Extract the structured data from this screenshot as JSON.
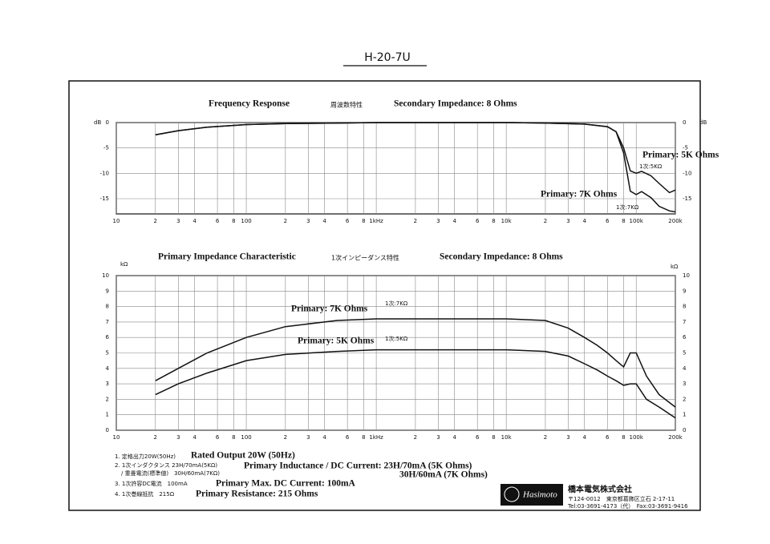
{
  "title": "H-20-7U",
  "chart_data": [
    {
      "type": "line",
      "title": "Frequency Response",
      "title_ja": "周波数特性",
      "subtitle": "Secondary Impedance: 8 Ohms",
      "y_label": "dB",
      "log_x": true,
      "grid": true,
      "x": [
        20,
        30,
        50,
        100,
        200,
        500,
        1000,
        2000,
        5000,
        10000,
        20000,
        40000,
        60000,
        70000,
        80000,
        90000,
        100000,
        110000,
        130000,
        150000,
        180000,
        200000
      ],
      "series": [
        {
          "name": "Primary: 5K Ohms",
          "label_ja": "1次:5KΩ",
          "color": "#111111",
          "values": [
            -2.4,
            -1.6,
            -0.9,
            -0.4,
            -0.2,
            -0.1,
            0,
            0,
            0,
            0,
            -0.1,
            -0.3,
            -0.8,
            -1.8,
            -5,
            -9.5,
            -10,
            -9.6,
            -10.5,
            -12,
            -13.8,
            -13.3
          ]
        },
        {
          "name": "Primary: 7K Ohms",
          "label_ja": "1次:7KΩ",
          "color": "#111111",
          "values": [
            -2.4,
            -1.6,
            -0.9,
            -0.4,
            -0.2,
            -0.1,
            0,
            0,
            0,
            0,
            -0.1,
            -0.3,
            -0.8,
            -1.8,
            -6,
            -13.5,
            -14.2,
            -13.6,
            -14.8,
            -16.5,
            -17.4,
            -17.6
          ]
        }
      ],
      "xlim": [
        10,
        200000
      ],
      "ylim": [
        -18,
        0
      ],
      "xticks": [
        10,
        {
          "value": 20,
          "label": "2"
        },
        {
          "value": 30,
          "label": "3"
        },
        {
          "value": 40,
          "label": "4"
        },
        {
          "value": 60,
          "label": "6"
        },
        {
          "value": 80,
          "label": "8"
        },
        100,
        {
          "value": 200,
          "label": "2"
        },
        {
          "value": 300,
          "label": "3"
        },
        {
          "value": 400,
          "label": "4"
        },
        {
          "value": 600,
          "label": "6"
        },
        {
          "value": 800,
          "label": "8"
        },
        {
          "value": 1000,
          "label": "1kHz"
        },
        {
          "value": 2000,
          "label": "2"
        },
        {
          "value": 3000,
          "label": "3"
        },
        {
          "value": 4000,
          "label": "4"
        },
        {
          "value": 6000,
          "label": "6"
        },
        {
          "value": 8000,
          "label": "8"
        },
        {
          "value": 10000,
          "label": "10k"
        },
        {
          "value": 20000,
          "label": "2"
        },
        {
          "value": 30000,
          "label": "3"
        },
        {
          "value": 40000,
          "label": "4"
        },
        {
          "value": 60000,
          "label": "6"
        },
        {
          "value": 80000,
          "label": "8"
        },
        {
          "value": 100000,
          "label": "100k"
        },
        {
          "value": 200000,
          "label": "200k"
        }
      ],
      "yticks": [
        0,
        -5,
        -10,
        -15
      ]
    },
    {
      "type": "line",
      "title": "Primary Impedance Characteristic",
      "title_ja": "1次インピーダンス特性",
      "subtitle": "Secondary Impedance: 8 Ohms",
      "y_label": "kΩ",
      "log_x": true,
      "grid": true,
      "x": [
        20,
        30,
        50,
        100,
        200,
        500,
        1000,
        2000,
        5000,
        10000,
        20000,
        30000,
        40000,
        50000,
        60000,
        70000,
        80000,
        90000,
        100000,
        120000,
        150000,
        200000
      ],
      "series": [
        {
          "name": "Primary: 7K Ohms",
          "label_ja": "1次:7KΩ",
          "color": "#111111",
          "values": [
            3.2,
            4.0,
            5.0,
            6.0,
            6.7,
            7.1,
            7.2,
            7.2,
            7.2,
            7.2,
            7.1,
            6.6,
            6.0,
            5.5,
            5.0,
            4.5,
            4.1,
            5.0,
            5.0,
            3.5,
            2.3,
            1.5
          ]
        },
        {
          "name": "Primary: 5K Ohms",
          "label_ja": "1次:5KΩ",
          "color": "#111111",
          "values": [
            2.3,
            3.0,
            3.7,
            4.5,
            4.9,
            5.1,
            5.2,
            5.2,
            5.2,
            5.2,
            5.1,
            4.8,
            4.3,
            3.9,
            3.5,
            3.2,
            2.9,
            3.0,
            3.0,
            2.0,
            1.5,
            0.8
          ]
        }
      ],
      "xlim": [
        10,
        200000
      ],
      "ylim": [
        0,
        10
      ],
      "xticks": [
        10,
        {
          "value": 20,
          "label": "2"
        },
        {
          "value": 30,
          "label": "3"
        },
        {
          "value": 40,
          "label": "4"
        },
        {
          "value": 60,
          "label": "6"
        },
        {
          "value": 80,
          "label": "8"
        },
        100,
        {
          "value": 200,
          "label": "2"
        },
        {
          "value": 300,
          "label": "3"
        },
        {
          "value": 400,
          "label": "4"
        },
        {
          "value": 600,
          "label": "6"
        },
        {
          "value": 800,
          "label": "8"
        },
        {
          "value": 1000,
          "label": "1kHz"
        },
        {
          "value": 2000,
          "label": "2"
        },
        {
          "value": 3000,
          "label": "3"
        },
        {
          "value": 4000,
          "label": "4"
        },
        {
          "value": 6000,
          "label": "6"
        },
        {
          "value": 8000,
          "label": "8"
        },
        {
          "value": 10000,
          "label": "10k"
        },
        {
          "value": 20000,
          "label": "2"
        },
        {
          "value": 30000,
          "label": "3"
        },
        {
          "value": 40000,
          "label": "4"
        },
        {
          "value": 60000,
          "label": "6"
        },
        {
          "value": 80000,
          "label": "8"
        },
        {
          "value": 100000,
          "label": "100k"
        },
        {
          "value": 200000,
          "label": "200k"
        }
      ],
      "yticks": [
        0,
        1,
        2,
        3,
        4,
        5,
        6,
        7,
        8,
        9,
        10
      ]
    }
  ],
  "notes": [
    {
      "ja": [
        "1. 定格出力20W(50Hz)"
      ],
      "en": [
        "Rated Output 20W (50Hz)"
      ]
    },
    {
      "ja": [
        "2. 1次インダクタンス 23H/70mA(5KΩ)",
        "/ 重畳電流(標準値)　30H/60mA(7KΩ)"
      ],
      "en": [
        "Primary Inductance / DC Current: 23H/70mA (5K Ohms)",
        "30H/60mA (7K Ohms)"
      ]
    },
    {
      "ja": [
        "3. 1次許容DC電流　100mA"
      ],
      "en": [
        "Primary Max. DC Current: 100mA"
      ]
    },
    {
      "ja": [
        "4. 1次巻線抵抗　215Ω"
      ],
      "en": [
        "Primary Resistance: 215 Ohms"
      ]
    }
  ],
  "company": {
    "logo": "Hasimoto",
    "name": "橋本電気株式会社",
    "address": "〒124-0012　東京都葛飾区立石 2-17-11",
    "phone": "Tel:03-3691-4173（代）　Fax:03-3691-9416"
  }
}
